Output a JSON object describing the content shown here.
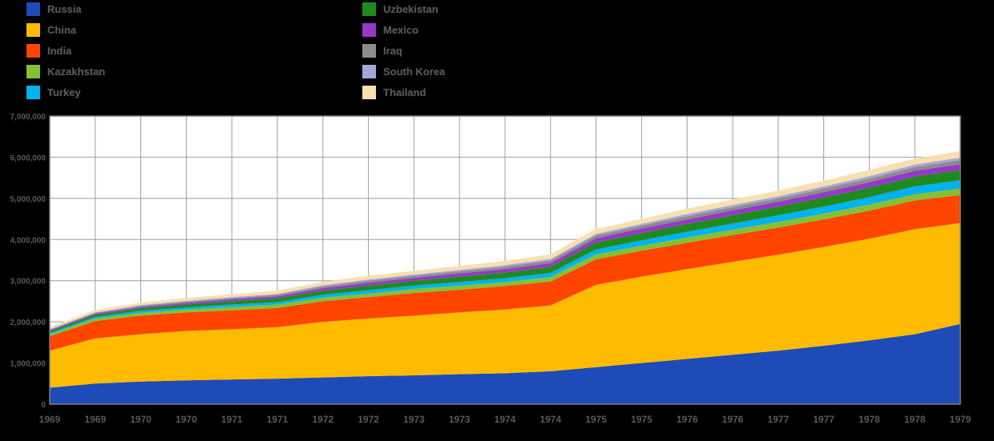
{
  "page": {
    "background": "#000000",
    "plot_background": "#ffffff",
    "grid_color": "#9e9e9e",
    "border_color": "#7f7f7f",
    "text_color": "#595959"
  },
  "legend": {
    "columns": 2,
    "column1_series": [
      "Russia",
      "China",
      "India",
      "Kazakhstan",
      "Turkey"
    ],
    "column2_series": [
      "Uzbekistan",
      "Mexico",
      "Iraq",
      "South Korea",
      "Thailand"
    ]
  },
  "chart_data": {
    "type": "area",
    "stacked": true,
    "title": "",
    "xlabel": "",
    "ylabel": "",
    "grid": true,
    "legend_position": "top-left, two columns",
    "ylim": [
      0,
      7000000
    ],
    "y_ticks": [
      "0",
      "1,000,000",
      "2,000,000",
      "3,000,000",
      "4,000,000",
      "5,000,000",
      "6,000,000",
      "7,000,000"
    ],
    "x_labels": [
      "1969",
      "1969",
      "1970",
      "1970",
      "1971",
      "1971",
      "1972",
      "1972",
      "1973",
      "1973",
      "1974",
      "1974",
      "1975",
      "1975",
      "1976",
      "1976",
      "1977",
      "1977",
      "1978",
      "1978",
      "1979"
    ],
    "series": [
      {
        "name": "Russia",
        "color": "#1e4bb8",
        "values": [
          400000,
          500000,
          550000,
          580000,
          600000,
          620000,
          650000,
          680000,
          700000,
          730000,
          750000,
          800000,
          900000,
          1000000,
          1100000,
          1200000,
          1300000,
          1420000,
          1550000,
          1700000,
          1950000
        ]
      },
      {
        "name": "China",
        "color": "#ffbb00",
        "values": [
          900000,
          1100000,
          1150000,
          1200000,
          1220000,
          1250000,
          1350000,
          1400000,
          1450000,
          1500000,
          1550000,
          1600000,
          2000000,
          2100000,
          2180000,
          2260000,
          2330000,
          2400000,
          2470000,
          2550000,
          2450000
        ]
      },
      {
        "name": "India",
        "color": "#ff4500",
        "values": [
          350000,
          420000,
          450000,
          450000,
          460000,
          470000,
          500000,
          520000,
          550000,
          550000,
          570000,
          580000,
          620000,
          630000,
          640000,
          650000,
          660000,
          670000,
          680000,
          700000,
          680000
        ]
      },
      {
        "name": "Kazakhstan",
        "color": "#86c032",
        "values": [
          50000,
          60000,
          70000,
          70000,
          80000,
          80000,
          90000,
          90000,
          100000,
          100000,
          100000,
          110000,
          120000,
          120000,
          130000,
          130000,
          140000,
          140000,
          150000,
          150000,
          160000
        ]
      },
      {
        "name": "Turkey",
        "color": "#00b2ee",
        "values": [
          30000,
          40000,
          50000,
          50000,
          60000,
          60000,
          70000,
          80000,
          80000,
          90000,
          90000,
          100000,
          120000,
          130000,
          140000,
          150000,
          160000,
          170000,
          180000,
          190000,
          200000
        ]
      },
      {
        "name": "Uzbekistan",
        "color": "#1f8a1f",
        "values": [
          40000,
          50000,
          60000,
          70000,
          80000,
          90000,
          100000,
          110000,
          120000,
          130000,
          140000,
          150000,
          170000,
          180000,
          190000,
          200000,
          210000,
          220000,
          230000,
          240000,
          250000
        ]
      },
      {
        "name": "Mexico",
        "color": "#9638c8",
        "values": [
          20000,
          30000,
          30000,
          40000,
          50000,
          50000,
          60000,
          70000,
          70000,
          80000,
          80000,
          90000,
          100000,
          110000,
          110000,
          120000,
          120000,
          130000,
          130000,
          140000,
          140000
        ]
      },
      {
        "name": "Iraq",
        "color": "#8c8c8c",
        "values": [
          20000,
          20000,
          30000,
          30000,
          30000,
          40000,
          40000,
          50000,
          50000,
          50000,
          60000,
          60000,
          70000,
          70000,
          80000,
          80000,
          80000,
          90000,
          90000,
          90000,
          100000
        ]
      },
      {
        "name": "South Korea",
        "color": "#a3a8d8",
        "values": [
          10000,
          10000,
          20000,
          20000,
          20000,
          20000,
          30000,
          30000,
          30000,
          30000,
          40000,
          40000,
          40000,
          40000,
          50000,
          50000,
          50000,
          50000,
          60000,
          60000,
          60000
        ]
      },
      {
        "name": "Thailand",
        "color": "#f8dfb0",
        "values": [
          50000,
          60000,
          60000,
          70000,
          70000,
          80000,
          80000,
          90000,
          90000,
          100000,
          100000,
          110000,
          120000,
          120000,
          130000,
          130000,
          140000,
          140000,
          150000,
          150000,
          160000
        ]
      }
    ]
  }
}
